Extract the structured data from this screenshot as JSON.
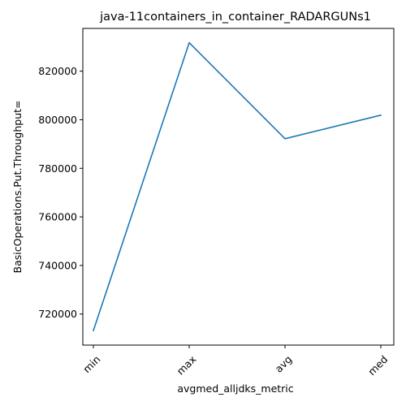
{
  "chart_data": {
    "type": "line",
    "title": "java-11containers_in_container_RADARGUNs1",
    "xlabel": "avgmed_alljdks_metric",
    "ylabel": "BasicOperations.Put.Throughput=",
    "categories": [
      "min",
      "max",
      "avg",
      "med"
    ],
    "series": [
      {
        "values": [
          713200,
          831700,
          792200,
          801900
        ],
        "color": "#1f77b4"
      }
    ],
    "ylim": [
      707200,
      837600
    ],
    "yticks": [
      720000,
      740000,
      760000,
      780000,
      800000,
      820000
    ],
    "ytick_labels": [
      "720000",
      "740000",
      "760000",
      "780000",
      "800000",
      "820000"
    ],
    "grid": false
  }
}
